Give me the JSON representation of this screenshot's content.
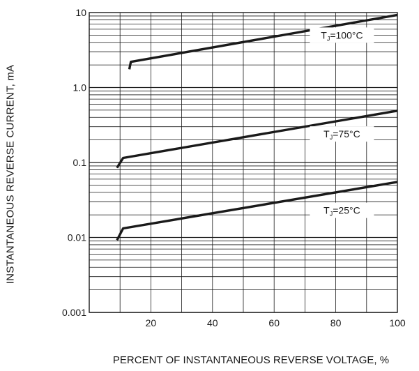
{
  "chart_data": {
    "type": "line",
    "xlabel": "PERCENT OF INSTANTANEOUS REVERSE VOLTAGE, %",
    "ylabel": "INSTANTANEOUS REVERSE CURRENT, mA",
    "xlim": [
      0,
      100
    ],
    "ylim": [
      0.001,
      10
    ],
    "yscale": "log",
    "grid": true,
    "x_ticks": [
      "20",
      "40",
      "60",
      "80",
      "100"
    ],
    "y_ticks": [
      "0.001",
      "0.01",
      "0.1",
      "1.0",
      "10"
    ],
    "series": [
      {
        "name": "T_J=100°C",
        "label_main": "T",
        "label_sub": "J",
        "label_rest": "=100°C",
        "label_at": [
          82,
          5.0
        ],
        "points": [
          [
            13,
            1.75
          ],
          [
            13.5,
            2.2
          ],
          [
            100,
            9.3
          ]
        ]
      },
      {
        "name": "T_J=75°C",
        "label_main": "T",
        "label_sub": "J",
        "label_rest": "=75°C",
        "label_at": [
          82,
          0.24
        ],
        "points": [
          [
            9,
            0.085
          ],
          [
            11,
            0.115
          ],
          [
            100,
            0.49
          ]
        ]
      },
      {
        "name": "T_J=25°C",
        "label_main": "T",
        "label_sub": "J",
        "label_rest": "=25°C",
        "label_at": [
          82,
          0.023
        ],
        "points": [
          [
            9,
            0.0092
          ],
          [
            11,
            0.0132
          ],
          [
            100,
            0.055
          ]
        ]
      }
    ]
  }
}
